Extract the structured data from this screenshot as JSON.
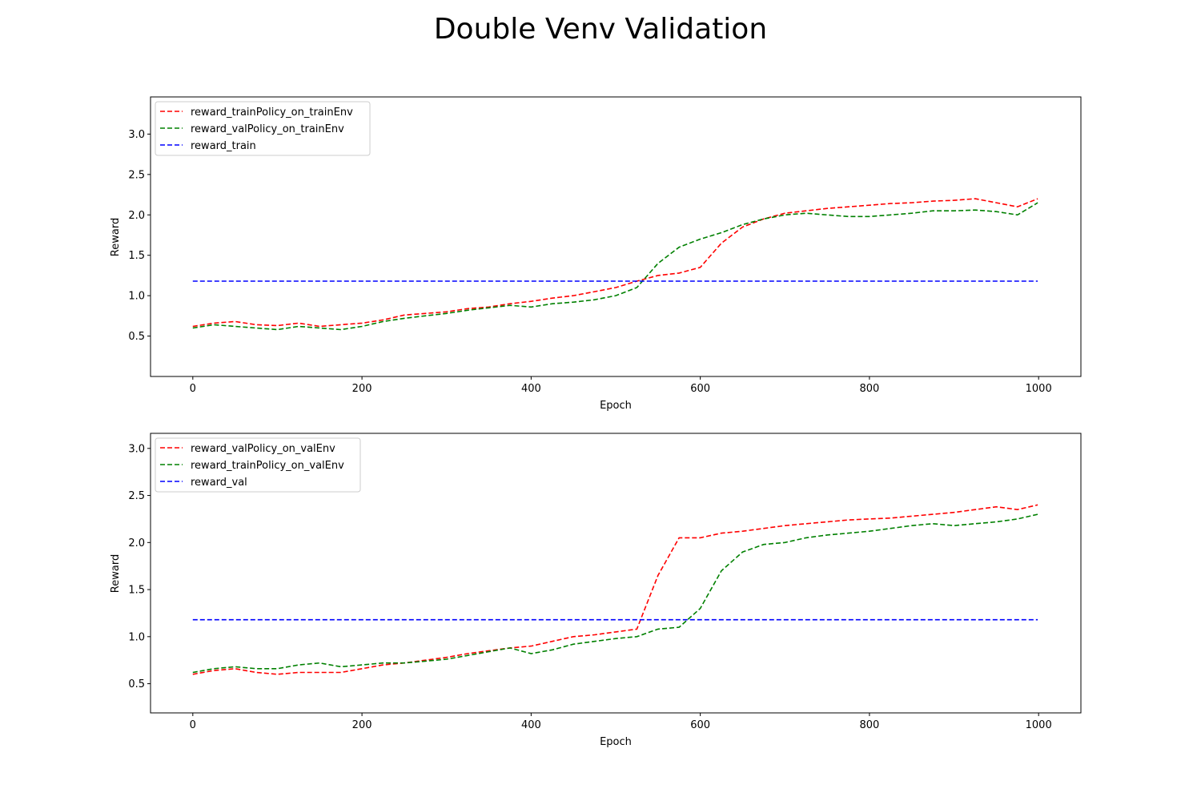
{
  "figure": {
    "title": "Double Venv Validation"
  },
  "chart_data": [
    {
      "type": "line",
      "title": "",
      "xlabel": "Epoch",
      "ylabel": "Reward",
      "xlim": [
        -50,
        1050
      ],
      "ylim": [
        0.0,
        3.46
      ],
      "xticks": [
        0,
        200,
        400,
        600,
        800,
        1000
      ],
      "xtick_labels": [
        "0",
        "200",
        "400",
        "600",
        "800",
        "1000"
      ],
      "yticks": [
        0.5,
        1.0,
        1.5,
        2.0,
        2.5,
        3.0
      ],
      "ytick_labels": [
        "0.5",
        "1.0",
        "1.5",
        "2.0",
        "2.5",
        "3.0"
      ],
      "grid": false,
      "legend_position": "top-left",
      "line_style": "dashed",
      "x": [
        0,
        25,
        50,
        75,
        100,
        125,
        150,
        175,
        200,
        225,
        250,
        275,
        300,
        325,
        350,
        375,
        400,
        425,
        450,
        475,
        500,
        525,
        550,
        575,
        600,
        625,
        650,
        675,
        700,
        725,
        750,
        775,
        800,
        825,
        850,
        875,
        900,
        925,
        950,
        975,
        999
      ],
      "series": [
        {
          "name": "reward_trainPolicy_on_trainEnv",
          "color": "#ff0000",
          "values": [
            0.62,
            0.66,
            0.68,
            0.64,
            0.63,
            0.66,
            0.62,
            0.64,
            0.66,
            0.7,
            0.76,
            0.78,
            0.8,
            0.84,
            0.86,
            0.9,
            0.93,
            0.97,
            1.0,
            1.05,
            1.1,
            1.18,
            1.25,
            1.28,
            1.35,
            1.65,
            1.85,
            1.95,
            2.02,
            2.05,
            2.08,
            2.1,
            2.12,
            2.14,
            2.15,
            2.17,
            2.18,
            2.2,
            2.15,
            2.1,
            2.2
          ]
        },
        {
          "name": "reward_valPolicy_on_trainEnv",
          "color": "#008000",
          "values": [
            0.6,
            0.64,
            0.62,
            0.6,
            0.58,
            0.62,
            0.6,
            0.58,
            0.62,
            0.68,
            0.72,
            0.75,
            0.78,
            0.82,
            0.85,
            0.88,
            0.86,
            0.9,
            0.92,
            0.95,
            1.0,
            1.1,
            1.4,
            1.6,
            1.7,
            1.78,
            1.88,
            1.95,
            2.0,
            2.02,
            2.0,
            1.98,
            1.98,
            2.0,
            2.02,
            2.05,
            2.05,
            2.06,
            2.04,
            2.0,
            2.15
          ]
        },
        {
          "name": "reward_train",
          "color": "#0000ff",
          "values": [
            1.18,
            1.18,
            1.18,
            1.18,
            1.18,
            1.18,
            1.18,
            1.18,
            1.18,
            1.18,
            1.18,
            1.18,
            1.18,
            1.18,
            1.18,
            1.18,
            1.18,
            1.18,
            1.18,
            1.18,
            1.18,
            1.18,
            1.18,
            1.18,
            1.18,
            1.18,
            1.18,
            1.18,
            1.18,
            1.18,
            1.18,
            1.18,
            1.18,
            1.18,
            1.18,
            1.18,
            1.18,
            1.18,
            1.18,
            1.18,
            1.18
          ]
        }
      ]
    },
    {
      "type": "line",
      "title": "",
      "xlabel": "Epoch",
      "ylabel": "Reward",
      "xlim": [
        -50,
        1050
      ],
      "ylim": [
        0.19,
        3.16
      ],
      "xticks": [
        0,
        200,
        400,
        600,
        800,
        1000
      ],
      "xtick_labels": [
        "0",
        "200",
        "400",
        "600",
        "800",
        "1000"
      ],
      "yticks": [
        0.5,
        1.0,
        1.5,
        2.0,
        2.5,
        3.0
      ],
      "ytick_labels": [
        "0.5",
        "1.0",
        "1.5",
        "2.0",
        "2.5",
        "3.0"
      ],
      "grid": false,
      "legend_position": "top-left",
      "line_style": "dashed",
      "x": [
        0,
        25,
        50,
        75,
        100,
        125,
        150,
        175,
        200,
        225,
        250,
        275,
        300,
        325,
        350,
        375,
        400,
        425,
        450,
        475,
        500,
        525,
        550,
        575,
        600,
        625,
        650,
        675,
        700,
        725,
        750,
        775,
        800,
        825,
        850,
        875,
        900,
        925,
        950,
        975,
        999
      ],
      "series": [
        {
          "name": "reward_valPolicy_on_valEnv",
          "color": "#ff0000",
          "values": [
            0.6,
            0.64,
            0.66,
            0.62,
            0.6,
            0.62,
            0.62,
            0.62,
            0.66,
            0.7,
            0.72,
            0.75,
            0.78,
            0.82,
            0.85,
            0.88,
            0.9,
            0.95,
            1.0,
            1.02,
            1.05,
            1.08,
            1.65,
            2.05,
            2.05,
            2.1,
            2.12,
            2.15,
            2.18,
            2.2,
            2.22,
            2.24,
            2.25,
            2.26,
            2.28,
            2.3,
            2.32,
            2.35,
            2.38,
            2.35,
            2.4
          ]
        },
        {
          "name": "reward_trainPolicy_on_valEnv",
          "color": "#008000",
          "values": [
            0.62,
            0.66,
            0.68,
            0.66,
            0.66,
            0.7,
            0.72,
            0.68,
            0.7,
            0.72,
            0.72,
            0.74,
            0.76,
            0.8,
            0.84,
            0.88,
            0.82,
            0.86,
            0.92,
            0.95,
            0.98,
            1.0,
            1.08,
            1.1,
            1.3,
            1.7,
            1.9,
            1.98,
            2.0,
            2.05,
            2.08,
            2.1,
            2.12,
            2.15,
            2.18,
            2.2,
            2.18,
            2.2,
            2.22,
            2.25,
            2.3
          ]
        },
        {
          "name": "reward_val",
          "color": "#0000ff",
          "values": [
            1.18,
            1.18,
            1.18,
            1.18,
            1.18,
            1.18,
            1.18,
            1.18,
            1.18,
            1.18,
            1.18,
            1.18,
            1.18,
            1.18,
            1.18,
            1.18,
            1.18,
            1.18,
            1.18,
            1.18,
            1.18,
            1.18,
            1.18,
            1.18,
            1.18,
            1.18,
            1.18,
            1.18,
            1.18,
            1.18,
            1.18,
            1.18,
            1.18,
            1.18,
            1.18,
            1.18,
            1.18,
            1.18,
            1.18,
            1.18,
            1.18
          ]
        }
      ]
    }
  ]
}
